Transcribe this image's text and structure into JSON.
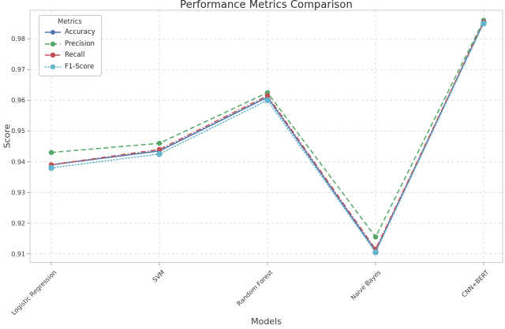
{
  "chart_data": {
    "type": "line",
    "title": "Performance Metrics Comparison",
    "xlabel": "Models",
    "ylabel": "Score",
    "categories": [
      "Logistic Regression",
      "SVM",
      "Random Forest",
      "Naive Bayes",
      "CNN+BERT"
    ],
    "series": [
      {
        "name": "Accuracy",
        "color": "#4C72B0",
        "linestyle": "solid",
        "markersize": 3.0,
        "values": [
          0.939,
          0.9435,
          0.961,
          0.911,
          0.9855
        ]
      },
      {
        "name": "Precision",
        "color": "#55A868",
        "linestyle": "dashed",
        "markersize": 3.2,
        "values": [
          0.943,
          0.946,
          0.9625,
          0.9155,
          0.986
        ]
      },
      {
        "name": "Recall",
        "color": "#C44E52",
        "linestyle": "dashdot",
        "markersize": 3.2,
        "values": [
          0.939,
          0.944,
          0.9615,
          0.9115,
          0.9855
        ]
      },
      {
        "name": "F1-Score",
        "color": "#64B5CD",
        "linestyle": "dotted",
        "markersize": 3.8,
        "values": [
          0.938,
          0.9425,
          0.96,
          0.9105,
          0.985
        ]
      }
    ],
    "yticks": [
      0.91,
      0.92,
      0.93,
      0.94,
      0.95,
      0.96,
      0.97,
      0.98
    ],
    "ylim": [
      0.9072,
      0.9893
    ],
    "grid": true,
    "legend": {
      "title": "Metrics",
      "position": "upper left"
    },
    "colors": {
      "grid": "#dcdcdc",
      "spine": "#cccccc",
      "tick": "#8a8a8a",
      "tick_label": "#3a3a3a"
    }
  }
}
